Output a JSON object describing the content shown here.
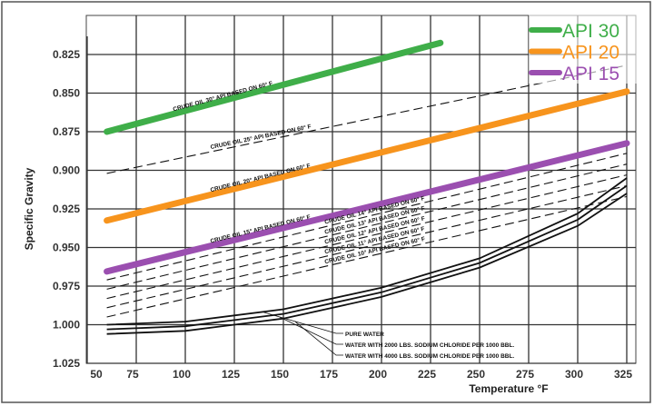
{
  "chart_data": {
    "type": "line",
    "title": "",
    "xlabel": "Temperature °F",
    "ylabel": "Specific Gravity",
    "xlim": [
      50,
      325
    ],
    "ylim": [
      1.025,
      0.8
    ],
    "y_inverted": true,
    "grid": true,
    "x_ticks": [
      "50",
      "75",
      "100",
      "125",
      "150",
      "175",
      "200",
      "225",
      "250",
      "275",
      "300",
      "325"
    ],
    "y_ticks": [
      "0.825",
      "0.850",
      "0.875",
      "0.900",
      "0.925",
      "0.950",
      "0.975",
      "1.000",
      "1.025"
    ],
    "legend_placement": "top-right",
    "legend": [
      {
        "label": "API 30",
        "color": "#3fae49"
      },
      {
        "label": "API 20",
        "color": "#f7941d"
      },
      {
        "label": "API 15",
        "color": "#9b4fb0"
      }
    ],
    "highlight_series": [
      {
        "name": "API 30",
        "color": "#3fae49",
        "x": [
          60,
          230
        ],
        "y": [
          0.875,
          0.8175
        ]
      },
      {
        "name": "API 20",
        "color": "#f7941d",
        "x": [
          60,
          325
        ],
        "y": [
          0.9325,
          0.849
        ]
      },
      {
        "name": "API 15",
        "color": "#9b4fb0",
        "x": [
          60,
          325
        ],
        "y": [
          0.9655,
          0.8825
        ]
      }
    ],
    "base_series": [
      {
        "name": "CRUDE OIL 30° API BASED ON 60° F",
        "style": "solid",
        "x": [
          60,
          230
        ],
        "y": [
          0.875,
          0.8175
        ]
      },
      {
        "name": "CRUDE OIL 25° API BASED ON 60° F",
        "style": "dashed",
        "x": [
          60,
          325
        ],
        "y": [
          0.902,
          0.832
        ]
      },
      {
        "name": "CRUDE OIL 20° API BASED ON 60° F",
        "style": "solid",
        "x": [
          60,
          325
        ],
        "y": [
          0.9325,
          0.849
        ]
      },
      {
        "name": "CRUDE OIL 15° API BASED ON 60° F",
        "style": "solid",
        "x": [
          60,
          325
        ],
        "y": [
          0.9655,
          0.8825
        ]
      },
      {
        "name": "CRUDE OIL 14° API BASED ON 60° F",
        "style": "dashed",
        "x": [
          60,
          325
        ],
        "y": [
          0.971,
          0.889
        ]
      },
      {
        "name": "CRUDE OIL 13° API BASED ON 60° F",
        "style": "dashed",
        "x": [
          60,
          325
        ],
        "y": [
          0.977,
          0.896
        ]
      },
      {
        "name": "CRUDE OIL 12° API BASED ON 60° F",
        "style": "dashed",
        "x": [
          60,
          325
        ],
        "y": [
          0.983,
          0.903
        ]
      },
      {
        "name": "CRUDE OIL 11° API BASED ON 60° F",
        "style": "dashed",
        "x": [
          60,
          325
        ],
        "y": [
          0.989,
          0.91
        ]
      },
      {
        "name": "CRUDE OIL 10° API BASED ON 60° F",
        "style": "dashed",
        "x": [
          60,
          325
        ],
        "y": [
          0.995,
          0.917
        ]
      }
    ],
    "water_series": [
      {
        "name": "PURE WATER",
        "x": [
          60,
          100,
          150,
          200,
          250,
          300,
          325
        ],
        "y": [
          1.0,
          0.998,
          0.99,
          0.976,
          0.957,
          0.928,
          0.905
        ]
      },
      {
        "name": "WATER WITH 2000 LBS. SODIUM CHLORIDE PER 1000 BBL.",
        "x": [
          60,
          100,
          150,
          200,
          250,
          300,
          325
        ],
        "y": [
          1.003,
          1.001,
          0.993,
          0.979,
          0.96,
          0.932,
          0.91
        ]
      },
      {
        "name": "WATER WITH 4000 LBS. SODIUM CHLORIDE PER 1000 BBL.",
        "x": [
          60,
          100,
          150,
          200,
          250,
          300,
          325
        ],
        "y": [
          1.006,
          1.004,
          0.996,
          0.982,
          0.963,
          0.936,
          0.915
        ]
      }
    ]
  }
}
